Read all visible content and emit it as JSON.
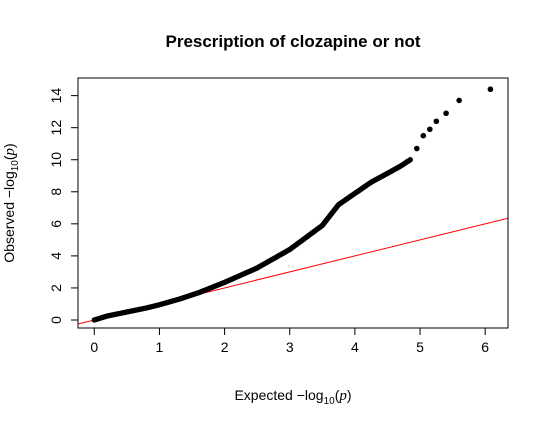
{
  "chart_data": {
    "type": "scatter",
    "title": "Prescription of clozapine or not",
    "xlabel": {
      "prefix": "Expected  −log",
      "subscript": "10",
      "open": "(",
      "var": "p",
      "close": ")"
    },
    "ylabel": {
      "prefix": "Observed  −log",
      "subscript": "10",
      "open": "(",
      "var": "p",
      "close": ")"
    },
    "xlim": [
      -0.25,
      6.35
    ],
    "ylim": [
      -0.5,
      15.1
    ],
    "x_ticks": [
      "0",
      "1",
      "2",
      "3",
      "4",
      "5",
      "6"
    ],
    "y_ticks": [
      "0",
      "2",
      "4",
      "6",
      "8",
      "10",
      "12",
      "14"
    ],
    "reference_line": {
      "slope": 1,
      "intercept": 0,
      "color": "#ff0000"
    },
    "point_color": "#000000",
    "curve": [
      [
        0.0,
        0.0
      ],
      [
        0.2,
        0.25
      ],
      [
        0.5,
        0.5
      ],
      [
        0.8,
        0.75
      ],
      [
        1.0,
        0.95
      ],
      [
        1.3,
        1.3
      ],
      [
        1.6,
        1.7
      ],
      [
        2.0,
        2.35
      ],
      [
        2.5,
        3.25
      ],
      [
        3.0,
        4.4
      ],
      [
        3.5,
        5.9
      ],
      [
        3.75,
        7.2
      ],
      [
        4.0,
        7.9
      ],
      [
        4.25,
        8.6
      ],
      [
        4.5,
        9.15
      ],
      [
        4.7,
        9.6
      ],
      [
        4.85,
        10.0
      ]
    ],
    "tail_points": [
      [
        4.95,
        10.7
      ],
      [
        5.05,
        11.5
      ],
      [
        5.15,
        11.9
      ],
      [
        5.25,
        12.4
      ],
      [
        5.4,
        12.9
      ],
      [
        5.6,
        13.7
      ],
      [
        6.08,
        14.4
      ]
    ]
  }
}
